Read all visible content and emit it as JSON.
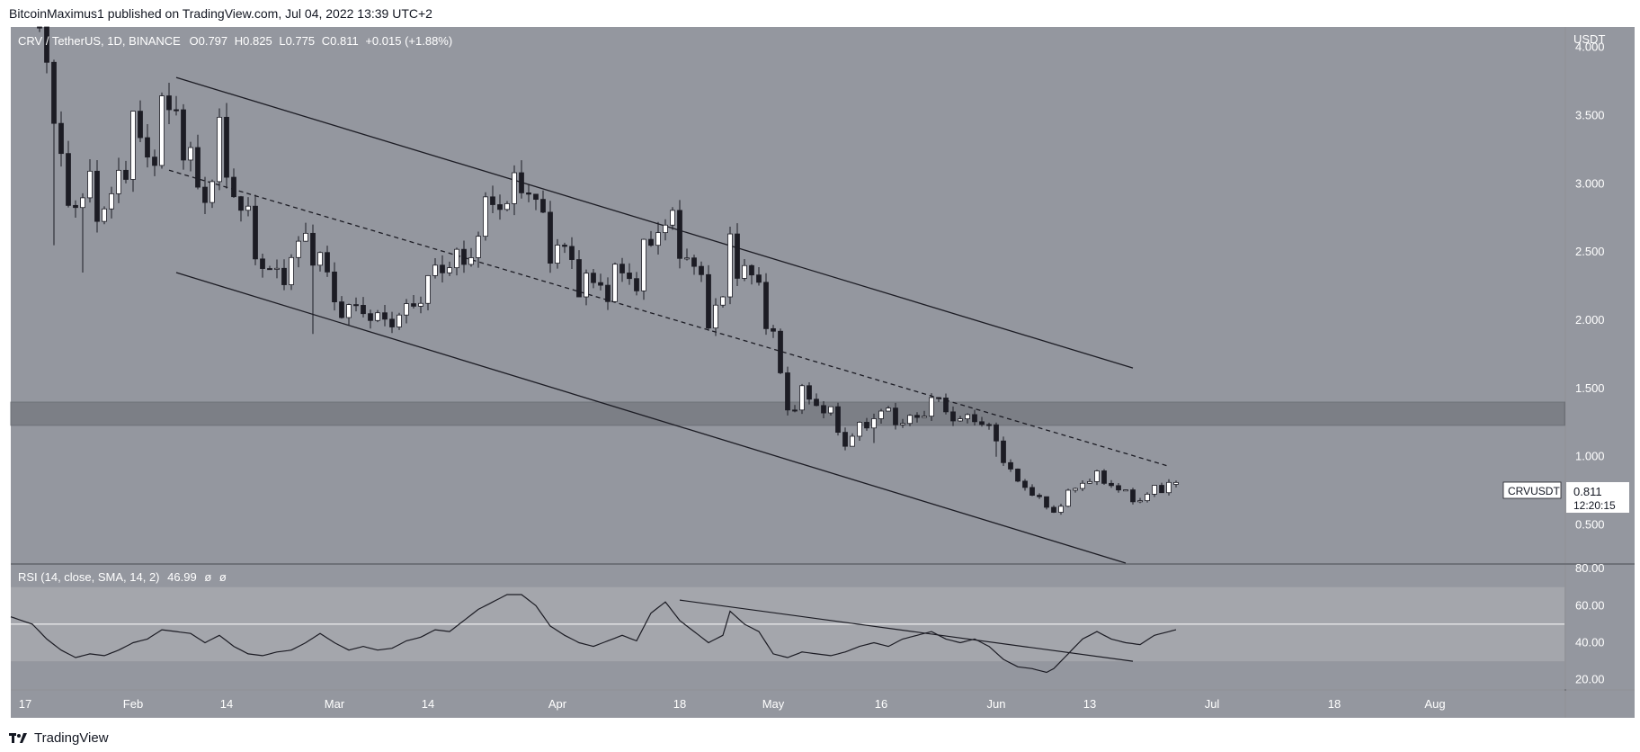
{
  "header": {
    "publisher": "BitcoinMaximus1 published on TradingView.com, Jul 04, 2022 13:39 UTC+2"
  },
  "footer": {
    "brand": "TradingView"
  },
  "colors": {
    "pane_bg": "#94979f",
    "text": "#ffffff",
    "candle_up": "#ffffff",
    "candle_down": "#1c1c24",
    "wick": "#1c1c24",
    "line": "#1c1c24",
    "zone": "#7c7f86",
    "rsi_band": "#a4a6ac",
    "frame": "#6e7178"
  },
  "chart_data": [
    {
      "type": "candlestick",
      "title": "CRV / TetherUS, 1D, BINANCE",
      "legend": {
        "symbol": "CRV / TetherUS, 1D, BINANCE",
        "o_label": "O",
        "o_value": "0.797",
        "h_label": "H",
        "h_value": "0.825",
        "l_label": "L",
        "l_value": "0.775",
        "c_label": "C",
        "c_value": "0.811",
        "change": "+0.015 (+1.88%)"
      },
      "y_axis": {
        "unit_label": "USDT",
        "ticks": [
          "4.000",
          "3.500",
          "3.000",
          "2.500",
          "2.000",
          "1.500",
          "1.000",
          "0.500"
        ],
        "tick_values": [
          4.0,
          3.5,
          3.0,
          2.5,
          2.0,
          1.5,
          1.0,
          0.5
        ],
        "ylim": [
          0.22,
          4.15
        ]
      },
      "x_axis": {
        "labels": [
          "17",
          "Feb",
          "14",
          "Mar",
          "14",
          "Apr",
          "18",
          "May",
          "16",
          "Jun",
          "13",
          "Jul",
          "18",
          "Aug"
        ],
        "label_days": [
          -15,
          0,
          13,
          28,
          41,
          59,
          76,
          89,
          104,
          120,
          133,
          150,
          167,
          181
        ],
        "xlim": [
          -17,
          199
        ]
      },
      "price_label": {
        "symbol": "CRVUSDT",
        "value": "0.811",
        "countdown": "12:20:15"
      },
      "anchors": [
        [
          -13,
          4.3
        ],
        [
          -12,
          3.95
        ],
        [
          -10,
          3.05
        ],
        [
          -8,
          2.85
        ],
        [
          -6,
          2.95
        ],
        [
          -4,
          2.8
        ],
        [
          -2,
          3.0
        ],
        [
          0,
          3.45
        ],
        [
          2,
          3.15
        ],
        [
          4,
          3.5
        ],
        [
          6,
          3.55
        ],
        [
          8,
          3.1
        ],
        [
          10,
          2.9
        ],
        [
          12,
          3.3
        ],
        [
          14,
          2.95
        ],
        [
          16,
          2.7
        ],
        [
          18,
          2.4
        ],
        [
          20,
          2.3
        ],
        [
          22,
          2.45
        ],
        [
          24,
          2.6
        ],
        [
          26,
          2.45
        ],
        [
          28,
          2.15
        ],
        [
          30,
          2.05
        ],
        [
          32,
          2.1
        ],
        [
          34,
          1.98
        ],
        [
          36,
          2.02
        ],
        [
          38,
          2.05
        ],
        [
          40,
          2.2
        ],
        [
          42,
          2.35
        ],
        [
          44,
          2.45
        ],
        [
          46,
          2.4
        ],
        [
          48,
          2.65
        ],
        [
          50,
          2.9
        ],
        [
          52,
          2.85
        ],
        [
          54,
          3.05
        ],
        [
          56,
          2.85
        ],
        [
          58,
          2.55
        ],
        [
          60,
          2.5
        ],
        [
          62,
          2.3
        ],
        [
          64,
          2.25
        ],
        [
          66,
          2.25
        ],
        [
          68,
          2.35
        ],
        [
          70,
          2.3
        ],
        [
          72,
          2.6
        ],
        [
          74,
          2.75
        ],
        [
          76,
          2.55
        ],
        [
          78,
          2.4
        ],
        [
          80,
          2.05
        ],
        [
          82,
          2.15
        ],
        [
          83,
          2.55
        ],
        [
          85,
          2.35
        ],
        [
          87,
          2.25
        ],
        [
          89,
          1.85
        ],
        [
          91,
          1.35
        ],
        [
          93,
          1.45
        ],
        [
          95,
          1.4
        ],
        [
          97,
          1.3
        ],
        [
          99,
          1.1
        ],
        [
          101,
          1.2
        ],
        [
          103,
          1.3
        ],
        [
          105,
          1.32
        ],
        [
          107,
          1.25
        ],
        [
          109,
          1.28
        ],
        [
          111,
          1.42
        ],
        [
          113,
          1.35
        ],
        [
          115,
          1.25
        ],
        [
          117,
          1.3
        ],
        [
          119,
          1.2
        ],
        [
          121,
          1.0
        ],
        [
          123,
          0.8
        ],
        [
          125,
          0.75
        ],
        [
          127,
          0.62
        ],
        [
          128,
          0.6
        ],
        [
          130,
          0.72
        ],
        [
          132,
          0.82
        ],
        [
          134,
          0.85
        ],
        [
          136,
          0.8
        ],
        [
          138,
          0.72
        ],
        [
          140,
          0.68
        ],
        [
          142,
          0.76
        ],
        [
          144,
          0.8
        ],
        [
          145,
          0.811
        ]
      ],
      "wick_spikes": [
        [
          -11,
          2.55
        ],
        [
          -7,
          2.35
        ],
        [
          25,
          1.9
        ],
        [
          103,
          1.1
        ],
        [
          120,
          1.0
        ]
      ],
      "last_candle": {
        "open": 0.797,
        "high": 0.825,
        "low": 0.775,
        "close": 0.811
      },
      "channel": {
        "upper": [
          [
            6,
            3.78
          ],
          [
            139,
            1.65
          ]
        ],
        "middle_dashed": [
          [
            5,
            3.1
          ],
          [
            144,
            0.93
          ]
        ],
        "lower": [
          [
            6,
            2.35
          ],
          [
            138,
            0.22
          ]
        ]
      },
      "zone": [
        1.23,
        1.4
      ]
    },
    {
      "type": "line",
      "title": "RSI (14, close, SMA, 14, 2)",
      "legend": {
        "label": "RSI (14, close, SMA, 14, 2)",
        "value": "46.99",
        "extra1": "ø",
        "extra2": "ø"
      },
      "y_axis": {
        "ticks": [
          "80.00",
          "60.00",
          "40.00",
          "20.00"
        ],
        "tick_values": [
          80,
          60,
          40,
          20
        ],
        "ylim": [
          15,
          82
        ]
      },
      "bands": {
        "overbought": 70,
        "oversold": 30,
        "mid": 50
      },
      "anchors": [
        [
          -17,
          54
        ],
        [
          -14,
          50
        ],
        [
          -12,
          42
        ],
        [
          -10,
          36
        ],
        [
          -8,
          32
        ],
        [
          -6,
          34
        ],
        [
          -4,
          33
        ],
        [
          -2,
          36
        ],
        [
          0,
          40
        ],
        [
          2,
          42
        ],
        [
          4,
          47
        ],
        [
          6,
          46
        ],
        [
          8,
          45
        ],
        [
          10,
          40
        ],
        [
          12,
          44
        ],
        [
          14,
          38
        ],
        [
          16,
          34
        ],
        [
          18,
          33
        ],
        [
          20,
          35
        ],
        [
          22,
          36
        ],
        [
          24,
          40
        ],
        [
          26,
          45
        ],
        [
          28,
          40
        ],
        [
          30,
          36
        ],
        [
          32,
          38
        ],
        [
          34,
          36
        ],
        [
          36,
          37
        ],
        [
          38,
          41
        ],
        [
          40,
          43
        ],
        [
          42,
          47
        ],
        [
          44,
          46
        ],
        [
          46,
          52
        ],
        [
          48,
          58
        ],
        [
          50,
          62
        ],
        [
          52,
          66
        ],
        [
          54,
          66
        ],
        [
          56,
          60
        ],
        [
          58,
          49
        ],
        [
          60,
          44
        ],
        [
          62,
          40
        ],
        [
          64,
          38
        ],
        [
          66,
          41
        ],
        [
          68,
          44
        ],
        [
          70,
          41
        ],
        [
          72,
          56
        ],
        [
          74,
          62
        ],
        [
          76,
          52
        ],
        [
          78,
          46
        ],
        [
          80,
          40
        ],
        [
          82,
          44
        ],
        [
          83,
          57
        ],
        [
          85,
          50
        ],
        [
          87,
          46
        ],
        [
          89,
          34
        ],
        [
          91,
          32
        ],
        [
          93,
          35
        ],
        [
          95,
          34
        ],
        [
          97,
          33
        ],
        [
          99,
          35
        ],
        [
          101,
          38
        ],
        [
          103,
          40
        ],
        [
          105,
          38
        ],
        [
          107,
          42
        ],
        [
          109,
          44
        ],
        [
          111,
          46
        ],
        [
          113,
          42
        ],
        [
          115,
          40
        ],
        [
          117,
          42
        ],
        [
          119,
          38
        ],
        [
          121,
          31
        ],
        [
          123,
          27
        ],
        [
          125,
          26
        ],
        [
          127,
          24
        ],
        [
          128,
          26
        ],
        [
          130,
          34
        ],
        [
          132,
          42
        ],
        [
          134,
          46
        ],
        [
          136,
          42
        ],
        [
          138,
          40
        ],
        [
          140,
          39
        ],
        [
          142,
          44
        ],
        [
          145,
          46.99
        ]
      ],
      "trendline": [
        [
          76,
          63
        ],
        [
          139,
          30
        ]
      ]
    }
  ]
}
